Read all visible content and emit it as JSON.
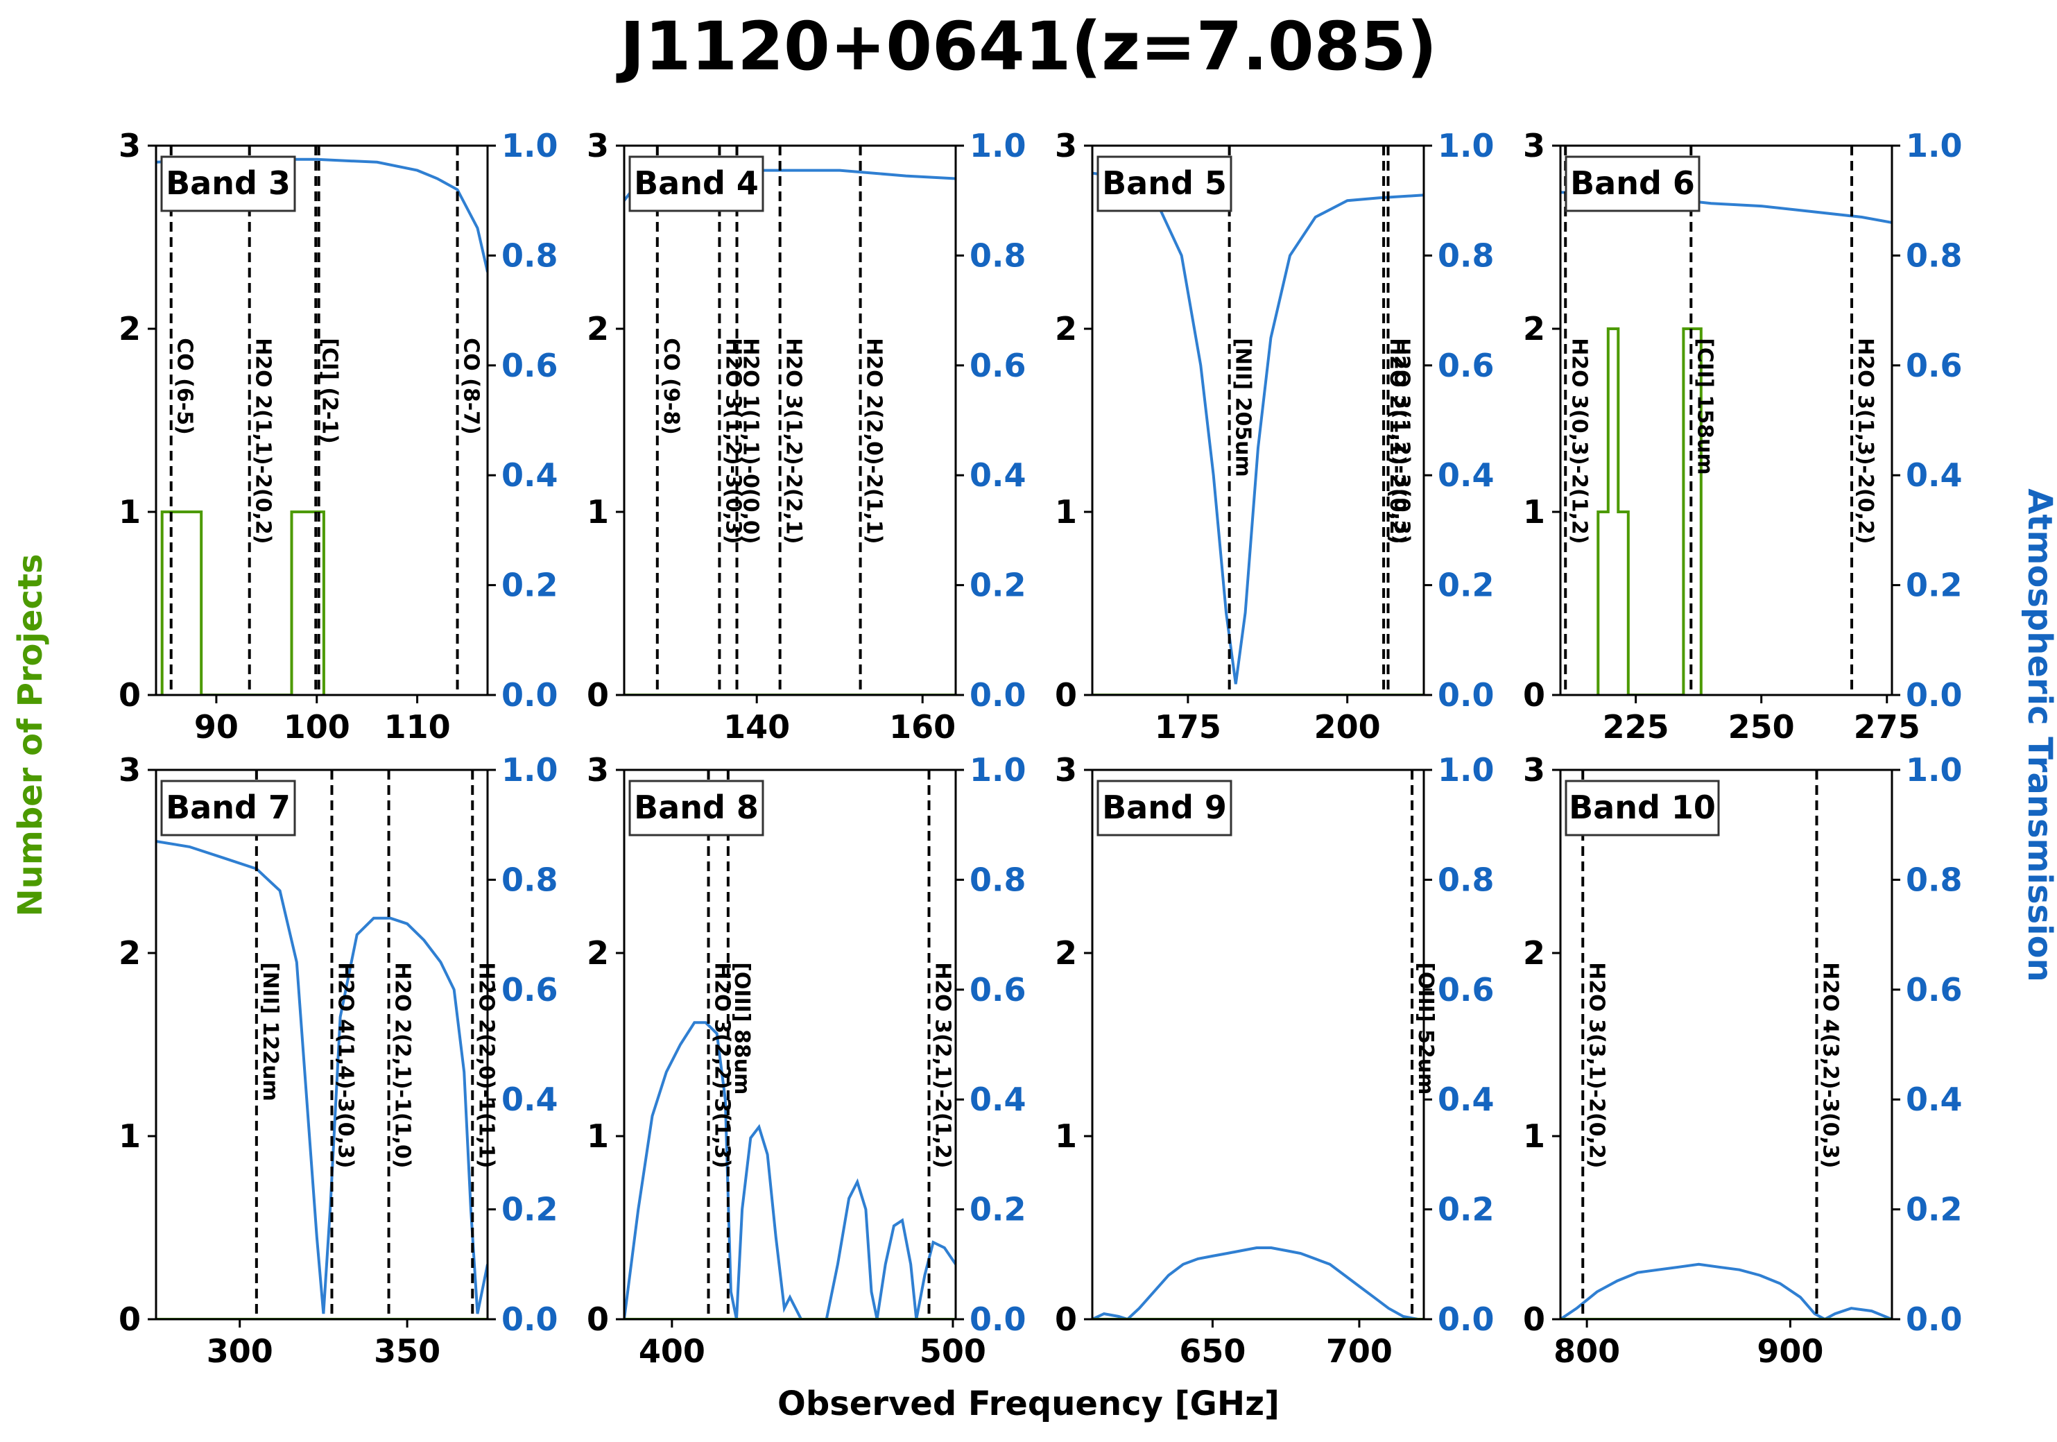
{
  "title": "J1120+0641(z=7.085)",
  "xlabel": "Observed Frequency [GHz]",
  "ylabel_left": "Number of Projects",
  "ylabel_right": "Atmospheric Transmission",
  "colors": {
    "projects": "#4c9a00",
    "transmission": "#2f7fd2",
    "right_axis_text": "#1565c0",
    "lines": "#000000"
  },
  "chart_data": [
    {
      "type": "line",
      "band": "Band 3",
      "xlim": [
        84,
        117
      ],
      "ylim": [
        0,
        3
      ],
      "y2lim": [
        0,
        1.0
      ],
      "xticks": [
        90,
        100,
        110
      ],
      "yticks": [
        0,
        1,
        2,
        3
      ],
      "y2ticks": [
        0.0,
        0.2,
        0.4,
        0.6,
        0.8,
        1.0
      ],
      "lines": [
        {
          "x": 85.5,
          "label": "CO (6-5)"
        },
        {
          "x": 93.3,
          "label": "H2O 2(1,1)-2(0,2)"
        },
        {
          "x": 99.9,
          "label": "[CI] (2-1)"
        },
        {
          "x": 100.2,
          "label": ""
        },
        {
          "x": 114.0,
          "label": "CO (8-7)"
        }
      ],
      "projects": [
        [
          84.6,
          0
        ],
        [
          84.6,
          1
        ],
        [
          88.5,
          1
        ],
        [
          88.5,
          0
        ],
        [
          97.5,
          0
        ],
        [
          97.5,
          1
        ],
        [
          100.7,
          1
        ],
        [
          100.7,
          0
        ]
      ],
      "transmission": [
        [
          84,
          0.97
        ],
        [
          90,
          0.975
        ],
        [
          100,
          0.975
        ],
        [
          106,
          0.97
        ],
        [
          110,
          0.955
        ],
        [
          112,
          0.94
        ],
        [
          114,
          0.92
        ],
        [
          116,
          0.85
        ],
        [
          117,
          0.77
        ]
      ]
    },
    {
      "type": "line",
      "band": "Band 4",
      "xlim": [
        124,
        164
      ],
      "ylim": [
        0,
        3
      ],
      "y2lim": [
        0,
        1.0
      ],
      "xticks": [
        140,
        160
      ],
      "yticks": [
        0,
        1,
        2,
        3
      ],
      "y2ticks": [
        0.0,
        0.2,
        0.4,
        0.6,
        0.8,
        1.0
      ],
      "lines": [
        {
          "x": 128.0,
          "label": "CO (9-8)"
        },
        {
          "x": 135.5,
          "label": "H2O 3(1,2)-3(0,3)"
        },
        {
          "x": 137.6,
          "label": "H2O 1(1,1)-0(0,0)"
        },
        {
          "x": 142.8,
          "label": "H2O 3(1,2)-2(2,1)"
        },
        {
          "x": 152.5,
          "label": "H2O 2(2,0)-2(1,1)"
        }
      ],
      "projects": [],
      "transmission": [
        [
          124,
          0.9
        ],
        [
          126,
          0.94
        ],
        [
          130,
          0.95
        ],
        [
          140,
          0.955
        ],
        [
          150,
          0.955
        ],
        [
          158,
          0.945
        ],
        [
          164,
          0.94
        ]
      ]
    },
    {
      "type": "line",
      "band": "Band 5",
      "xlim": [
        160,
        212
      ],
      "ylim": [
        0,
        3
      ],
      "y2lim": [
        0,
        1.0
      ],
      "xticks": [
        175,
        200
      ],
      "yticks": [
        0,
        1,
        2,
        3
      ],
      "y2ticks": [
        0.0,
        0.2,
        0.4,
        0.6,
        0.8,
        1.0
      ],
      "lines": [
        {
          "x": 181.5,
          "label": "[NII] 205um"
        },
        {
          "x": 205.7,
          "label": "H2O 2(1,1)-2(0,2)"
        },
        {
          "x": 206.4,
          "label": "H2O 3(1,2)-3(0,3)"
        }
      ],
      "projects": [],
      "transmission": [
        [
          160,
          0.95
        ],
        [
          166,
          0.94
        ],
        [
          170,
          0.9
        ],
        [
          174,
          0.8
        ],
        [
          177,
          0.6
        ],
        [
          179,
          0.4
        ],
        [
          181,
          0.15
        ],
        [
          182.5,
          0.02
        ],
        [
          184,
          0.15
        ],
        [
          186,
          0.45
        ],
        [
          188,
          0.65
        ],
        [
          191,
          0.8
        ],
        [
          195,
          0.87
        ],
        [
          200,
          0.9
        ],
        [
          205,
          0.905
        ],
        [
          212,
          0.91
        ]
      ]
    },
    {
      "type": "line",
      "band": "Band 6",
      "xlim": [
        210,
        276
      ],
      "ylim": [
        0,
        3
      ],
      "y2lim": [
        0,
        1.0
      ],
      "xticks": [
        225,
        250,
        275
      ],
      "yticks": [
        0,
        1,
        2,
        3
      ],
      "y2ticks": [
        0.0,
        0.2,
        0.4,
        0.6,
        0.8,
        1.0
      ],
      "lines": [
        {
          "x": 211.0,
          "label": "H2O 3(0,3)-2(1,2)"
        },
        {
          "x": 236.0,
          "label": "[CII] 158um"
        },
        {
          "x": 268.0,
          "label": "H2O 3(1,3)-2(0,2)"
        }
      ],
      "projects": [
        [
          217.5,
          0
        ],
        [
          217.5,
          1
        ],
        [
          219.5,
          1
        ],
        [
          219.5,
          2
        ],
        [
          221.5,
          2
        ],
        [
          221.5,
          1
        ],
        [
          223.5,
          1
        ],
        [
          223.5,
          0
        ],
        [
          234.5,
          0
        ],
        [
          234.5,
          2
        ],
        [
          238.0,
          2
        ],
        [
          238.0,
          0
        ]
      ],
      "transmission": [
        [
          210,
          0.915
        ],
        [
          220,
          0.912
        ],
        [
          230,
          0.905
        ],
        [
          240,
          0.895
        ],
        [
          250,
          0.89
        ],
        [
          260,
          0.88
        ],
        [
          270,
          0.87
        ],
        [
          276,
          0.86
        ]
      ]
    },
    {
      "type": "line",
      "band": "Band 7",
      "xlim": [
        275,
        374
      ],
      "ylim": [
        0,
        3
      ],
      "y2lim": [
        0,
        1.0
      ],
      "xticks": [
        300,
        350
      ],
      "yticks": [
        0,
        1,
        2,
        3
      ],
      "y2ticks": [
        0.0,
        0.2,
        0.4,
        0.6,
        0.8,
        1.0
      ],
      "lines": [
        {
          "x": 305.0,
          "label": "[NII] 122um"
        },
        {
          "x": 327.5,
          "label": "H2O 4(1,4)-3(0,3)"
        },
        {
          "x": 344.5,
          "label": "H2O 2(2,1)-1(1,0)"
        },
        {
          "x": 369.5,
          "label": "H2O 2(2,0)-1(1,1)"
        }
      ],
      "projects": [],
      "transmission": [
        [
          275,
          0.87
        ],
        [
          285,
          0.86
        ],
        [
          295,
          0.84
        ],
        [
          305,
          0.82
        ],
        [
          312,
          0.78
        ],
        [
          317,
          0.65
        ],
        [
          320,
          0.4
        ],
        [
          323,
          0.15
        ],
        [
          325,
          0.01
        ],
        [
          327,
          0.2
        ],
        [
          330,
          0.55
        ],
        [
          335,
          0.7
        ],
        [
          340,
          0.73
        ],
        [
          345,
          0.73
        ],
        [
          350,
          0.72
        ],
        [
          355,
          0.69
        ],
        [
          360,
          0.65
        ],
        [
          364,
          0.6
        ],
        [
          367,
          0.45
        ],
        [
          369,
          0.2
        ],
        [
          371,
          0.01
        ],
        [
          374,
          0.1
        ]
      ]
    },
    {
      "type": "line",
      "band": "Band 8",
      "xlim": [
        383,
        501
      ],
      "ylim": [
        0,
        3
      ],
      "y2lim": [
        0,
        1.0
      ],
      "xticks": [
        400,
        500
      ],
      "yticks": [
        0,
        1,
        2,
        3
      ],
      "y2ticks": [
        0.0,
        0.2,
        0.4,
        0.6,
        0.8,
        1.0
      ],
      "lines": [
        {
          "x": 413.0,
          "label": "H2O 3(2,2)-3(1,3)"
        },
        {
          "x": 420.0,
          "label": "[OIII] 88um"
        },
        {
          "x": 491.5,
          "label": "H2O 3(2,1)-2(1,2)"
        }
      ],
      "projects": [],
      "transmission": [
        [
          383,
          0.0
        ],
        [
          388,
          0.2
        ],
        [
          393,
          0.37
        ],
        [
          398,
          0.45
        ],
        [
          403,
          0.5
        ],
        [
          408,
          0.54
        ],
        [
          412,
          0.54
        ],
        [
          416,
          0.52
        ],
        [
          419,
          0.4
        ],
        [
          421,
          0.05
        ],
        [
          423,
          0.0
        ],
        [
          425,
          0.2
        ],
        [
          428,
          0.33
        ],
        [
          431,
          0.35
        ],
        [
          434,
          0.3
        ],
        [
          437,
          0.15
        ],
        [
          440,
          0.02
        ],
        [
          442,
          0.04
        ],
        [
          446,
          0.0
        ],
        [
          455,
          0.0
        ],
        [
          459,
          0.1
        ],
        [
          463,
          0.22
        ],
        [
          466,
          0.25
        ],
        [
          469,
          0.2
        ],
        [
          471,
          0.05
        ],
        [
          473,
          0.0
        ],
        [
          476,
          0.1
        ],
        [
          479,
          0.17
        ],
        [
          482,
          0.18
        ],
        [
          485,
          0.1
        ],
        [
          487,
          0.0
        ],
        [
          490,
          0.08
        ],
        [
          493,
          0.14
        ],
        [
          497,
          0.13
        ],
        [
          501,
          0.1
        ]
      ]
    },
    {
      "type": "line",
      "band": "Band 9",
      "xlim": [
        609,
        722
      ],
      "ylim": [
        0,
        3
      ],
      "y2lim": [
        0,
        1.0
      ],
      "xticks": [
        650,
        700
      ],
      "yticks": [
        0,
        1,
        2,
        3
      ],
      "y2ticks": [
        0.0,
        0.2,
        0.4,
        0.6,
        0.8,
        1.0
      ],
      "lines": [
        {
          "x": 718.0,
          "label": "[OIII] 52um"
        }
      ],
      "projects": [],
      "transmission": [
        [
          609,
          0.0
        ],
        [
          613,
          0.01
        ],
        [
          618,
          0.005
        ],
        [
          621,
          0.0
        ],
        [
          625,
          0.02
        ],
        [
          630,
          0.05
        ],
        [
          635,
          0.08
        ],
        [
          640,
          0.1
        ],
        [
          645,
          0.11
        ],
        [
          650,
          0.115
        ],
        [
          655,
          0.12
        ],
        [
          660,
          0.125
        ],
        [
          665,
          0.13
        ],
        [
          670,
          0.13
        ],
        [
          675,
          0.125
        ],
        [
          680,
          0.12
        ],
        [
          685,
          0.11
        ],
        [
          690,
          0.1
        ],
        [
          695,
          0.08
        ],
        [
          700,
          0.06
        ],
        [
          705,
          0.04
        ],
        [
          710,
          0.02
        ],
        [
          715,
          0.005
        ],
        [
          720,
          0.0
        ],
        [
          722,
          0.0
        ]
      ]
    },
    {
      "type": "line",
      "band": "Band 10",
      "xlim": [
        787,
        950
      ],
      "ylim": [
        0,
        3
      ],
      "y2lim": [
        0,
        1.0
      ],
      "xticks": [
        800,
        900
      ],
      "yticks": [
        0,
        1,
        2,
        3
      ],
      "y2ticks": [
        0.0,
        0.2,
        0.4,
        0.6,
        0.8,
        1.0
      ],
      "lines": [
        {
          "x": 798.0,
          "label": "H2O 3(3,1)-2(0,2)"
        },
        {
          "x": 913.0,
          "label": "H2O 4(3,2)-3(0,3)"
        }
      ],
      "projects": [],
      "transmission": [
        [
          787,
          0.0
        ],
        [
          795,
          0.02
        ],
        [
          805,
          0.05
        ],
        [
          815,
          0.07
        ],
        [
          825,
          0.085
        ],
        [
          835,
          0.09
        ],
        [
          845,
          0.095
        ],
        [
          855,
          0.1
        ],
        [
          865,
          0.095
        ],
        [
          875,
          0.09
        ],
        [
          885,
          0.08
        ],
        [
          895,
          0.065
        ],
        [
          905,
          0.04
        ],
        [
          912,
          0.01
        ],
        [
          917,
          0.0
        ],
        [
          922,
          0.01
        ],
        [
          930,
          0.02
        ],
        [
          940,
          0.015
        ],
        [
          950,
          0.0
        ]
      ]
    }
  ]
}
